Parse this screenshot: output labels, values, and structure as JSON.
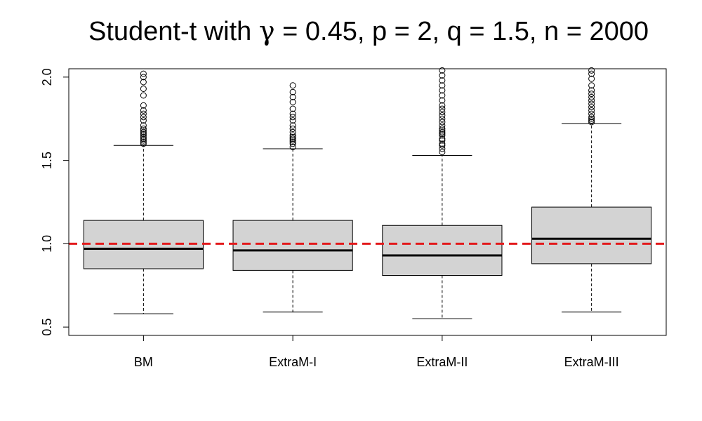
{
  "chart_data": {
    "type": "box",
    "title": "Student-t with γ = 0.45, p = 2, q = 1.5, n = 2000",
    "title_parts": [
      "Student-t with ",
      "γ",
      " = 0.45, p = 2, q = 1.5, n = 2000"
    ],
    "xlabel": "",
    "ylabel": "",
    "ylim": [
      0.45,
      2.05
    ],
    "yticks": [
      0.5,
      1.0,
      1.5,
      2.0
    ],
    "ytick_labels": [
      "0.5",
      "1.0",
      "1.5",
      "2.0"
    ],
    "reference_line": {
      "y": 1.0,
      "color": "#e31a1c",
      "style": "dashed"
    },
    "box_fill": "#d3d3d3",
    "categories": [
      "BM",
      "ExtraM-I",
      "ExtraM-II",
      "ExtraM-III"
    ],
    "boxes": [
      {
        "name": "BM",
        "whisker_low": 0.58,
        "q1": 0.85,
        "median": 0.97,
        "q3": 1.14,
        "whisker_high": 1.59,
        "outliers": [
          1.6,
          1.61,
          1.62,
          1.63,
          1.64,
          1.65,
          1.66,
          1.67,
          1.68,
          1.69,
          1.71,
          1.74,
          1.76,
          1.78,
          1.8,
          1.83,
          1.89,
          1.93,
          1.97,
          2.0,
          2.02
        ]
      },
      {
        "name": "ExtraM-I",
        "whisker_low": 0.59,
        "q1": 0.84,
        "median": 0.96,
        "q3": 1.14,
        "whisker_high": 1.57,
        "outliers": [
          1.58,
          1.6,
          1.61,
          1.62,
          1.63,
          1.64,
          1.65,
          1.67,
          1.69,
          1.71,
          1.74,
          1.76,
          1.78,
          1.81,
          1.85,
          1.88,
          1.91,
          1.95
        ]
      },
      {
        "name": "ExtraM-II",
        "whisker_low": 0.55,
        "q1": 0.81,
        "median": 0.93,
        "q3": 1.11,
        "whisker_high": 1.53,
        "outliers": [
          1.55,
          1.57,
          1.59,
          1.6,
          1.62,
          1.63,
          1.65,
          1.66,
          1.67,
          1.68,
          1.69,
          1.71,
          1.73,
          1.75,
          1.77,
          1.79,
          1.81,
          1.83,
          1.86,
          1.89,
          1.92,
          1.95,
          1.98,
          2.01,
          2.04
        ]
      },
      {
        "name": "ExtraM-III",
        "whisker_low": 0.59,
        "q1": 0.88,
        "median": 1.03,
        "q3": 1.22,
        "whisker_high": 1.72,
        "outliers": [
          1.73,
          1.74,
          1.75,
          1.76,
          1.78,
          1.8,
          1.82,
          1.84,
          1.86,
          1.88,
          1.9,
          1.92,
          1.95,
          1.99,
          2.02,
          2.04
        ]
      }
    ]
  }
}
